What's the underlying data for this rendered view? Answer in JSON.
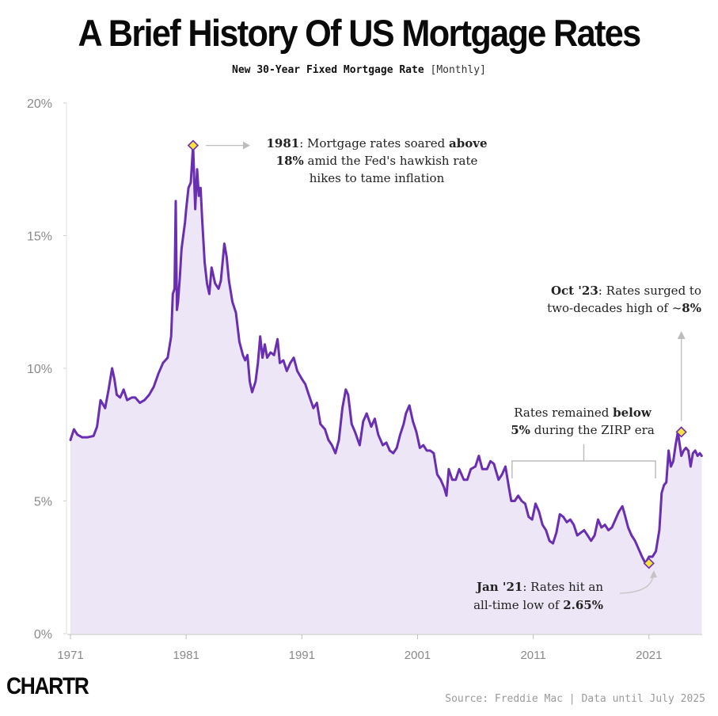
{
  "header": {
    "title": "A Brief History Of US Mortgage Rates",
    "subtitle": "New 30-Year Fixed Mortgage Rate",
    "frequency": "[Monthly]"
  },
  "chart_data": {
    "type": "area",
    "title": "A Brief History Of US Mortgage Rates",
    "subtitle": "New 30-Year Fixed Mortgage Rate [Monthly]",
    "xlabel": "",
    "ylabel": "",
    "xlim": [
      1971,
      2025.6
    ],
    "ylim": [
      0,
      20
    ],
    "grid": false,
    "y_ticks": [
      {
        "value": 0,
        "label": "0%"
      },
      {
        "value": 5,
        "label": "5%"
      },
      {
        "value": 10,
        "label": "10%"
      },
      {
        "value": 15,
        "label": "15%"
      },
      {
        "value": 20,
        "label": "20%"
      }
    ],
    "x_ticks": [
      {
        "value": 1971,
        "label": "1971"
      },
      {
        "value": 1981,
        "label": "1981"
      },
      {
        "value": 1991,
        "label": "1991"
      },
      {
        "value": 2001,
        "label": "2001"
      },
      {
        "value": 2011,
        "label": "2011"
      },
      {
        "value": 2021,
        "label": "2021"
      }
    ],
    "series": [
      {
        "name": "30-Year Fixed Mortgage Rate (%)",
        "color": "#6a2fb0",
        "fill": "#ece6f6",
        "x": [
          1971.0,
          1971.3,
          1971.6,
          1972.0,
          1972.5,
          1973.0,
          1973.3,
          1973.6,
          1974.0,
          1974.3,
          1974.6,
          1974.8,
          1975.0,
          1975.3,
          1975.6,
          1975.9,
          1976.3,
          1976.6,
          1977.0,
          1977.4,
          1977.8,
          1978.2,
          1978.6,
          1979.0,
          1979.4,
          1979.7,
          1979.85,
          1980.0,
          1980.1,
          1980.2,
          1980.3,
          1980.45,
          1980.6,
          1980.75,
          1980.9,
          1981.0,
          1981.2,
          1981.4,
          1981.6,
          1981.78,
          1981.95,
          1982.1,
          1982.25,
          1982.4,
          1982.6,
          1982.8,
          1983.0,
          1983.2,
          1983.5,
          1983.8,
          1984.0,
          1984.3,
          1984.5,
          1984.7,
          1985.0,
          1985.3,
          1985.6,
          1985.9,
          1986.1,
          1986.3,
          1986.5,
          1986.7,
          1987.0,
          1987.2,
          1987.4,
          1987.6,
          1987.8,
          1988.0,
          1988.3,
          1988.6,
          1988.9,
          1989.1,
          1989.4,
          1989.7,
          1990.0,
          1990.3,
          1990.6,
          1991.0,
          1991.3,
          1991.6,
          1992.0,
          1992.3,
          1992.6,
          1993.0,
          1993.3,
          1993.6,
          1993.9,
          1994.2,
          1994.5,
          1994.8,
          1995.0,
          1995.3,
          1995.6,
          1996.0,
          1996.3,
          1996.6,
          1997.0,
          1997.3,
          1997.6,
          1998.0,
          1998.3,
          1998.6,
          1998.9,
          1999.2,
          1999.5,
          1999.8,
          2000.0,
          2000.3,
          2000.6,
          2000.9,
          2001.2,
          2001.5,
          2001.8,
          2002.1,
          2002.4,
          2002.7,
          2003.0,
          2003.3,
          2003.5,
          2003.7,
          2004.0,
          2004.3,
          2004.6,
          2005.0,
          2005.3,
          2005.6,
          2006.0,
          2006.3,
          2006.6,
          2007.0,
          2007.3,
          2007.6,
          2008.0,
          2008.3,
          2008.6,
          2008.9,
          2009.1,
          2009.4,
          2009.7,
          2010.0,
          2010.3,
          2010.6,
          2010.9,
          2011.2,
          2011.5,
          2011.8,
          2012.1,
          2012.4,
          2012.7,
          2013.0,
          2013.3,
          2013.6,
          2013.9,
          2014.2,
          2014.5,
          2014.8,
          2015.1,
          2015.4,
          2015.7,
          2016.0,
          2016.3,
          2016.6,
          2016.9,
          2017.2,
          2017.5,
          2017.8,
          2018.1,
          2018.4,
          2018.7,
          2018.9,
          2019.2,
          2019.5,
          2019.8,
          2020.1,
          2020.4,
          2020.7,
          2021.0,
          2021.3,
          2021.6,
          2021.9,
          2022.1,
          2022.3,
          2022.5,
          2022.7,
          2022.9,
          2023.1,
          2023.3,
          2023.5,
          2023.8,
          2024.0,
          2024.2,
          2024.4,
          2024.6,
          2024.8,
          2025.0,
          2025.2,
          2025.4,
          2025.55
        ],
        "values": [
          7.3,
          7.7,
          7.5,
          7.4,
          7.4,
          7.45,
          7.8,
          8.8,
          8.5,
          9.2,
          10.0,
          9.6,
          9.0,
          8.9,
          9.2,
          8.8,
          8.9,
          8.9,
          8.7,
          8.8,
          9.0,
          9.3,
          9.8,
          10.2,
          10.4,
          11.2,
          12.8,
          13.0,
          16.3,
          12.2,
          12.5,
          13.4,
          14.5,
          15.0,
          15.5,
          16.0,
          16.8,
          17.0,
          18.4,
          16.0,
          17.5,
          16.5,
          16.8,
          15.5,
          14.0,
          13.2,
          12.8,
          13.8,
          13.2,
          13.0,
          13.3,
          14.7,
          14.2,
          13.3,
          12.5,
          12.1,
          11.0,
          10.5,
          10.3,
          10.5,
          9.5,
          9.1,
          9.5,
          10.2,
          11.2,
          10.4,
          10.9,
          10.4,
          10.6,
          10.5,
          11.1,
          10.2,
          10.3,
          9.9,
          10.2,
          10.4,
          9.9,
          9.6,
          9.4,
          9.0,
          8.5,
          8.7,
          7.9,
          7.7,
          7.3,
          7.1,
          6.8,
          7.3,
          8.5,
          9.2,
          9.0,
          7.9,
          7.6,
          7.1,
          8.0,
          8.3,
          7.8,
          8.1,
          7.5,
          7.1,
          7.2,
          6.9,
          6.8,
          7.0,
          7.5,
          7.9,
          8.3,
          8.6,
          8.0,
          7.6,
          7.0,
          7.1,
          6.9,
          6.9,
          6.8,
          6.0,
          5.8,
          5.5,
          5.2,
          6.2,
          5.8,
          5.8,
          6.2,
          5.8,
          5.8,
          6.2,
          6.3,
          6.7,
          6.2,
          6.2,
          6.5,
          6.4,
          5.8,
          6.0,
          6.3,
          5.5,
          5.0,
          5.0,
          5.2,
          5.0,
          4.9,
          4.4,
          4.3,
          4.9,
          4.6,
          4.1,
          3.9,
          3.5,
          3.4,
          3.8,
          4.5,
          4.4,
          4.2,
          4.3,
          4.1,
          3.7,
          3.8,
          3.9,
          3.7,
          3.5,
          3.7,
          4.3,
          4.0,
          4.1,
          3.9,
          4.0,
          4.3,
          4.6,
          4.8,
          4.5,
          4.0,
          3.7,
          3.5,
          3.2,
          2.9,
          2.65,
          2.9,
          2.9,
          3.1,
          3.9,
          5.3,
          5.6,
          5.7,
          6.9,
          6.3,
          6.5,
          7.1,
          7.6,
          6.7,
          6.9,
          7.0,
          6.9,
          6.3,
          6.8,
          6.9,
          6.7,
          6.8,
          6.7
        ]
      }
    ],
    "annotations": [
      {
        "id": "peak",
        "x": 1981.6,
        "y": 18.4,
        "lines": [
          [
            "1981",
            ": Mortgage rates soared ",
            "above"
          ],
          [
            "18%",
            " amid the Fed's hawkish rate"
          ],
          [
            "hikes to tame inflation"
          ]
        ]
      },
      {
        "id": "high",
        "x": 2023.8,
        "y": 7.6,
        "lines": [
          [
            "Oct '23",
            ": Rates surged to"
          ],
          [
            "two-decades high of ~",
            "8%"
          ]
        ]
      },
      {
        "id": "zirp",
        "x_range": [
          2009.1,
          2021.5
        ],
        "lines": [
          [
            "Rates remained ",
            "below"
          ],
          [
            "5%",
            " during the ZIRP era"
          ]
        ]
      },
      {
        "id": "low",
        "x": 2021.0,
        "y": 2.65,
        "lines": [
          [
            "Jan '21",
            ": Rates hit an"
          ],
          [
            "all-time low of ",
            "2.65%"
          ]
        ]
      }
    ]
  },
  "footer": {
    "logo": "CHARTR",
    "source": "Source: Freddie Mac | Data until July 2025"
  }
}
